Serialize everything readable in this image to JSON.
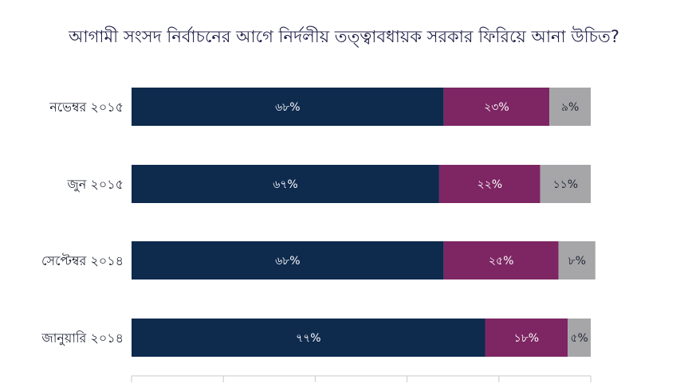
{
  "chart_data": {
    "type": "bar",
    "orientation": "horizontal",
    "stacked": true,
    "title": "আগামী সংসদ নির্বাচনের আগে নির্দলীয় তত্ত্বাবধায়ক সরকার ফিরিয়ে আনা উচিত?",
    "categories": [
      "নভেম্বর ২০১৫",
      "জুন ২০১৫",
      "সেপ্টেম্বর ২০১৪",
      "জানুয়ারি ২০১৪"
    ],
    "series": [
      {
        "values": [
          68,
          67,
          68,
          77
        ],
        "labels": [
          "৬৮%",
          "৬৭%",
          "৬৮%",
          "৭৭%"
        ],
        "color": "#0e2a4d",
        "text_color": "#ffffff"
      },
      {
        "values": [
          23,
          22,
          25,
          18
        ],
        "labels": [
          "২৩%",
          "২২%",
          "২৫%",
          "১৮%"
        ],
        "color": "#7d2663",
        "text_color": "#ffffff"
      },
      {
        "values": [
          9,
          11,
          8,
          5
        ],
        "labels": [
          "৯%",
          "১১%",
          "৮%",
          "৫%"
        ],
        "color": "#a6a6a8",
        "text_color": "#1f2433"
      }
    ],
    "xlim": [
      0,
      100
    ],
    "legend": "none",
    "grid": false
  }
}
